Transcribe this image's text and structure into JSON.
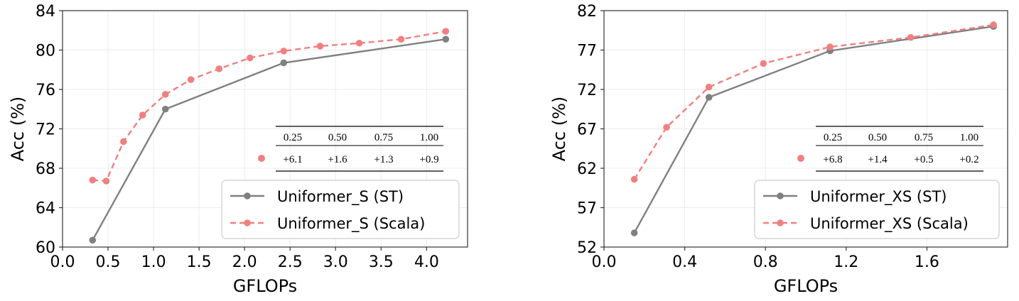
{
  "chart_data": [
    {
      "type": "line",
      "xlabel": "GFLOPs",
      "ylabel": "Acc (%)",
      "xlim": [
        0.0,
        4.45
      ],
      "ylim": [
        60,
        84
      ],
      "xticks": [
        0.0,
        0.5,
        1.0,
        1.5,
        2.0,
        2.5,
        3.0,
        3.5,
        4.0
      ],
      "xtick_labels": [
        "0.0",
        "0.5",
        "1.0",
        "1.5",
        "2.0",
        "2.5",
        "3.0",
        "3.5",
        "4.0"
      ],
      "yticks": [
        60,
        64,
        68,
        72,
        76,
        80,
        84
      ],
      "ytick_labels": [
        "60",
        "64",
        "68",
        "72",
        "76",
        "80",
        "84"
      ],
      "grid": true,
      "legend_position": "lower-right",
      "series": [
        {
          "name": "Uniformer_S (ST)",
          "color": "#808080",
          "style": "solid",
          "points": [
            [
              0.33,
              60.7
            ],
            [
              1.13,
              74.0
            ],
            [
              2.43,
              78.7
            ],
            [
              4.21,
              81.1
            ]
          ]
        },
        {
          "name": "Uniformer_S (Scala)",
          "color": "#f08080",
          "style": "dashed",
          "points": [
            [
              0.33,
              66.8
            ],
            [
              0.48,
              66.7
            ],
            [
              0.67,
              70.7
            ],
            [
              0.88,
              73.4
            ],
            [
              1.13,
              75.5
            ],
            [
              1.41,
              77.0
            ],
            [
              1.72,
              78.1
            ],
            [
              2.06,
              79.2
            ],
            [
              2.43,
              79.9
            ],
            [
              2.83,
              80.4
            ],
            [
              3.26,
              80.7
            ],
            [
              3.72,
              81.1
            ],
            [
              4.21,
              81.9
            ]
          ]
        }
      ],
      "table": {
        "marker_color": "#f08080",
        "headers": [
          "0.25",
          "0.50",
          "0.75",
          "1.00"
        ],
        "values": [
          "+6.1",
          "+1.6",
          "+1.3",
          "+0.9"
        ]
      }
    },
    {
      "type": "line",
      "xlabel": "GFLOPs",
      "ylabel": "Acc (%)",
      "xlim": [
        0.0,
        2.0
      ],
      "ylim": [
        52,
        82
      ],
      "xticks": [
        0.0,
        0.4,
        0.8,
        1.2,
        1.6
      ],
      "xtick_labels": [
        "0.0",
        "0.4",
        "0.8",
        "1.2",
        "1.6"
      ],
      "yticks": [
        52,
        57,
        62,
        67,
        72,
        77,
        82
      ],
      "ytick_labels": [
        "52",
        "57",
        "62",
        "67",
        "72",
        "77",
        "82"
      ],
      "grid": true,
      "legend_position": "lower-right",
      "series": [
        {
          "name": "Uniformer_XS (ST)",
          "color": "#808080",
          "style": "solid",
          "points": [
            [
              0.15,
              53.8
            ],
            [
              0.52,
              71.0
            ],
            [
              1.12,
              76.9
            ],
            [
              1.93,
              80.0
            ]
          ]
        },
        {
          "name": "Uniformer_XS (Scala)",
          "color": "#f08080",
          "style": "dashed",
          "points": [
            [
              0.15,
              60.6
            ],
            [
              0.31,
              67.2
            ],
            [
              0.52,
              72.3
            ],
            [
              0.79,
              75.3
            ],
            [
              1.12,
              77.4
            ],
            [
              1.52,
              78.6
            ],
            [
              1.93,
              80.2
            ]
          ]
        }
      ],
      "table": {
        "marker_color": "#f08080",
        "headers": [
          "0.25",
          "0.50",
          "0.75",
          "1.00"
        ],
        "values": [
          "+6.8",
          "+1.4",
          "+0.5",
          "+0.2"
        ]
      }
    }
  ]
}
